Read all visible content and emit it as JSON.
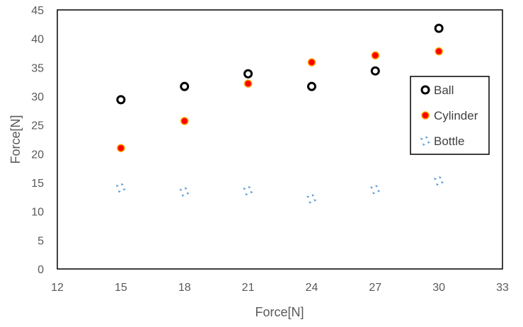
{
  "chart_data": {
    "type": "scatter",
    "title": "",
    "xlabel": "Force[N]",
    "ylabel": "Force[N]",
    "xlim": [
      12,
      33
    ],
    "ylim": [
      0,
      45
    ],
    "xticks": [
      12,
      15,
      18,
      21,
      24,
      27,
      30,
      33
    ],
    "yticks": [
      0,
      5,
      10,
      15,
      20,
      25,
      30,
      35,
      40,
      45
    ],
    "grid": false,
    "legend_position": "right",
    "series": [
      {
        "name": "Ball",
        "marker": "open-circle",
        "color": "#000000",
        "points": [
          {
            "x": 15,
            "y": 29.4
          },
          {
            "x": 18,
            "y": 31.7
          },
          {
            "x": 21,
            "y": 33.9
          },
          {
            "x": 24,
            "y": 31.7
          },
          {
            "x": 27,
            "y": 34.4
          },
          {
            "x": 30,
            "y": 41.8
          }
        ]
      },
      {
        "name": "Cylinder",
        "marker": "filled-circle",
        "color": "#ff0000",
        "edge_color": "#ffa500",
        "points": [
          {
            "x": 15,
            "y": 21.0
          },
          {
            "x": 18,
            "y": 25.7
          },
          {
            "x": 21,
            "y": 32.2
          },
          {
            "x": 24,
            "y": 35.9
          },
          {
            "x": 27,
            "y": 37.1
          },
          {
            "x": 30,
            "y": 37.8
          }
        ]
      },
      {
        "name": "Bottle",
        "marker": "dotted-star",
        "color": "#5b9bd5",
        "points": [
          {
            "x": 15,
            "y": 14.1
          },
          {
            "x": 18,
            "y": 13.4
          },
          {
            "x": 21,
            "y": 13.6
          },
          {
            "x": 24,
            "y": 12.2
          },
          {
            "x": 27,
            "y": 13.8
          },
          {
            "x": 30,
            "y": 15.3
          }
        ]
      }
    ]
  }
}
